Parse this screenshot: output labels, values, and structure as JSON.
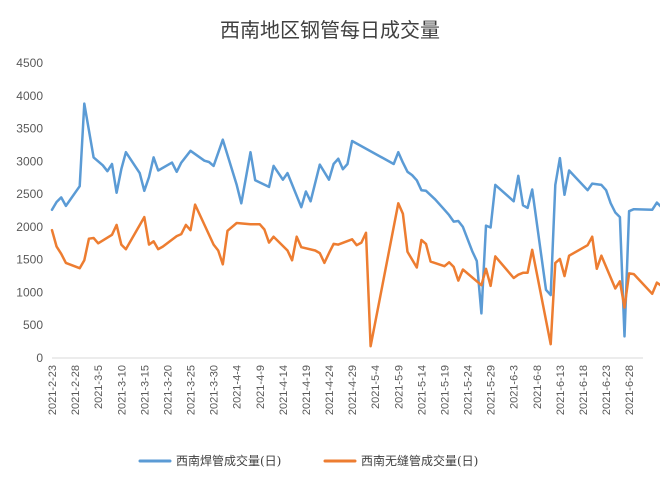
{
  "chart_data": {
    "type": "line",
    "title": "西南地区钢管每日成交量",
    "ylim": [
      0,
      4500
    ],
    "yticks": [
      0,
      500,
      1000,
      1500,
      2000,
      2500,
      3000,
      3500,
      4000,
      4500
    ],
    "grid": false,
    "legend_position": "bottom",
    "x_start": "2021-02-23",
    "x_end": "2021-07-01",
    "xtick_labels": [
      "2021-2-23",
      "2021-2-28",
      "2021-3-5",
      "2021-3-10",
      "2021-3-15",
      "2021-3-20",
      "2021-3-25",
      "2021-3-30",
      "2021-4-4",
      "2021-4-9",
      "2021-4-14",
      "2021-4-19",
      "2021-4-24",
      "2021-4-29",
      "2021-5-4",
      "2021-5-9",
      "2021-5-14",
      "2021-5-19",
      "2021-5-24",
      "2021-5-29",
      "2021-6-3",
      "2021-6-8",
      "2021-6-13",
      "2021-6-18",
      "2021-6-23",
      "2021-6-28"
    ],
    "series": [
      {
        "name": "西南焊管成交量(日)",
        "color": "#5B9BD5",
        "points": [
          [
            "2021-02-23",
            2260
          ],
          [
            "2021-02-24",
            2380
          ],
          [
            "2021-02-25",
            2450
          ],
          [
            "2021-02-26",
            2320
          ],
          [
            "2021-03-01",
            2620
          ],
          [
            "2021-03-02",
            3880
          ],
          [
            "2021-03-04",
            3060
          ],
          [
            "2021-03-06",
            2940
          ],
          [
            "2021-03-07",
            2850
          ],
          [
            "2021-03-08",
            2960
          ],
          [
            "2021-03-09",
            2520
          ],
          [
            "2021-03-10",
            2880
          ],
          [
            "2021-03-11",
            3140
          ],
          [
            "2021-03-14",
            2820
          ],
          [
            "2021-03-15",
            2550
          ],
          [
            "2021-03-16",
            2760
          ],
          [
            "2021-03-17",
            3060
          ],
          [
            "2021-03-18",
            2860
          ],
          [
            "2021-03-21",
            2980
          ],
          [
            "2021-03-22",
            2840
          ],
          [
            "2021-03-23",
            2980
          ],
          [
            "2021-03-25",
            3160
          ],
          [
            "2021-03-28",
            3010
          ],
          [
            "2021-03-29",
            2990
          ],
          [
            "2021-03-30",
            2930
          ],
          [
            "2021-04-01",
            3330
          ],
          [
            "2021-04-04",
            2640
          ],
          [
            "2021-04-05",
            2360
          ],
          [
            "2021-04-07",
            3140
          ],
          [
            "2021-04-08",
            2710
          ],
          [
            "2021-04-11",
            2610
          ],
          [
            "2021-04-12",
            2930
          ],
          [
            "2021-04-14",
            2720
          ],
          [
            "2021-04-15",
            2820
          ],
          [
            "2021-04-18",
            2300
          ],
          [
            "2021-04-19",
            2540
          ],
          [
            "2021-04-20",
            2390
          ],
          [
            "2021-04-22",
            2950
          ],
          [
            "2021-04-24",
            2720
          ],
          [
            "2021-04-25",
            2960
          ],
          [
            "2021-04-26",
            3040
          ],
          [
            "2021-04-27",
            2880
          ],
          [
            "2021-04-28",
            2960
          ],
          [
            "2021-04-29",
            3310
          ],
          [
            "2021-05-08",
            2960
          ],
          [
            "2021-05-09",
            3140
          ],
          [
            "2021-05-10",
            2980
          ],
          [
            "2021-05-11",
            2840
          ],
          [
            "2021-05-12",
            2790
          ],
          [
            "2021-05-13",
            2710
          ],
          [
            "2021-05-14",
            2560
          ],
          [
            "2021-05-15",
            2550
          ],
          [
            "2021-05-17",
            2420
          ],
          [
            "2021-05-18",
            2340
          ],
          [
            "2021-05-19",
            2260
          ],
          [
            "2021-05-20",
            2180
          ],
          [
            "2021-05-21",
            2080
          ],
          [
            "2021-05-22",
            2090
          ],
          [
            "2021-05-23",
            2000
          ],
          [
            "2021-05-25",
            1630
          ],
          [
            "2021-05-26",
            1480
          ],
          [
            "2021-05-27",
            680
          ],
          [
            "2021-05-28",
            2020
          ],
          [
            "2021-05-29",
            1990
          ],
          [
            "2021-05-30",
            2640
          ],
          [
            "2021-06-03",
            2390
          ],
          [
            "2021-06-04",
            2780
          ],
          [
            "2021-06-05",
            2330
          ],
          [
            "2021-06-06",
            2290
          ],
          [
            "2021-06-07",
            2570
          ],
          [
            "2021-06-10",
            1040
          ],
          [
            "2021-06-11",
            960
          ],
          [
            "2021-06-12",
            2640
          ],
          [
            "2021-06-13",
            3050
          ],
          [
            "2021-06-14",
            2490
          ],
          [
            "2021-06-15",
            2860
          ],
          [
            "2021-06-19",
            2560
          ],
          [
            "2021-06-20",
            2660
          ],
          [
            "2021-06-22",
            2640
          ],
          [
            "2021-06-23",
            2560
          ],
          [
            "2021-06-24",
            2360
          ],
          [
            "2021-06-25",
            2220
          ],
          [
            "2021-06-26",
            2150
          ],
          [
            "2021-06-27",
            330
          ],
          [
            "2021-06-28",
            2240
          ],
          [
            "2021-06-29",
            2270
          ],
          [
            "2021-07-03",
            2260
          ],
          [
            "2021-07-04",
            2370
          ],
          [
            "2021-07-05",
            2300
          ]
        ]
      },
      {
        "name": "西南无缝管成交量(日)",
        "color": "#ED7D31",
        "points": [
          [
            "2021-02-23",
            1950
          ],
          [
            "2021-02-24",
            1700
          ],
          [
            "2021-02-25",
            1590
          ],
          [
            "2021-02-26",
            1450
          ],
          [
            "2021-03-01",
            1370
          ],
          [
            "2021-03-02",
            1490
          ],
          [
            "2021-03-03",
            1820
          ],
          [
            "2021-03-04",
            1830
          ],
          [
            "2021-03-05",
            1750
          ],
          [
            "2021-03-08",
            1880
          ],
          [
            "2021-03-09",
            2030
          ],
          [
            "2021-03-10",
            1730
          ],
          [
            "2021-03-11",
            1660
          ],
          [
            "2021-03-15",
            2150
          ],
          [
            "2021-03-16",
            1730
          ],
          [
            "2021-03-17",
            1780
          ],
          [
            "2021-03-18",
            1660
          ],
          [
            "2021-03-19",
            1700
          ],
          [
            "2021-03-22",
            1860
          ],
          [
            "2021-03-23",
            1890
          ],
          [
            "2021-03-24",
            2030
          ],
          [
            "2021-03-25",
            1950
          ],
          [
            "2021-03-26",
            2340
          ],
          [
            "2021-03-30",
            1730
          ],
          [
            "2021-03-31",
            1640
          ],
          [
            "2021-04-01",
            1430
          ],
          [
            "2021-04-02",
            1940
          ],
          [
            "2021-04-04",
            2060
          ],
          [
            "2021-04-07",
            2040
          ],
          [
            "2021-04-09",
            2040
          ],
          [
            "2021-04-10",
            1960
          ],
          [
            "2021-04-11",
            1760
          ],
          [
            "2021-04-12",
            1850
          ],
          [
            "2021-04-15",
            1640
          ],
          [
            "2021-04-16",
            1490
          ],
          [
            "2021-04-17",
            1850
          ],
          [
            "2021-04-18",
            1690
          ],
          [
            "2021-04-21",
            1640
          ],
          [
            "2021-04-22",
            1600
          ],
          [
            "2021-04-23",
            1450
          ],
          [
            "2021-04-24",
            1600
          ],
          [
            "2021-04-25",
            1740
          ],
          [
            "2021-04-26",
            1730
          ],
          [
            "2021-04-29",
            1810
          ],
          [
            "2021-04-30",
            1720
          ],
          [
            "2021-05-01",
            1760
          ],
          [
            "2021-05-02",
            1910
          ],
          [
            "2021-05-03",
            180
          ],
          [
            "2021-05-09",
            2360
          ],
          [
            "2021-05-10",
            2200
          ],
          [
            "2021-05-11",
            1620
          ],
          [
            "2021-05-13",
            1380
          ],
          [
            "2021-05-14",
            1800
          ],
          [
            "2021-05-15",
            1740
          ],
          [
            "2021-05-16",
            1470
          ],
          [
            "2021-05-19",
            1400
          ],
          [
            "2021-05-20",
            1460
          ],
          [
            "2021-05-21",
            1390
          ],
          [
            "2021-05-22",
            1180
          ],
          [
            "2021-05-23",
            1350
          ],
          [
            "2021-05-27",
            1110
          ],
          [
            "2021-05-28",
            1360
          ],
          [
            "2021-05-29",
            1100
          ],
          [
            "2021-05-30",
            1550
          ],
          [
            "2021-06-03",
            1220
          ],
          [
            "2021-06-04",
            1270
          ],
          [
            "2021-06-05",
            1300
          ],
          [
            "2021-06-06",
            1300
          ],
          [
            "2021-06-07",
            1650
          ],
          [
            "2021-06-11",
            210
          ],
          [
            "2021-06-12",
            1450
          ],
          [
            "2021-06-13",
            1510
          ],
          [
            "2021-06-14",
            1250
          ],
          [
            "2021-06-15",
            1560
          ],
          [
            "2021-06-19",
            1720
          ],
          [
            "2021-06-20",
            1850
          ],
          [
            "2021-06-21",
            1360
          ],
          [
            "2021-06-22",
            1560
          ],
          [
            "2021-06-25",
            1060
          ],
          [
            "2021-06-26",
            1170
          ],
          [
            "2021-06-27",
            770
          ],
          [
            "2021-06-28",
            1290
          ],
          [
            "2021-06-29",
            1280
          ],
          [
            "2021-07-03",
            980
          ],
          [
            "2021-07-04",
            1150
          ],
          [
            "2021-07-05",
            1100
          ]
        ]
      }
    ]
  }
}
